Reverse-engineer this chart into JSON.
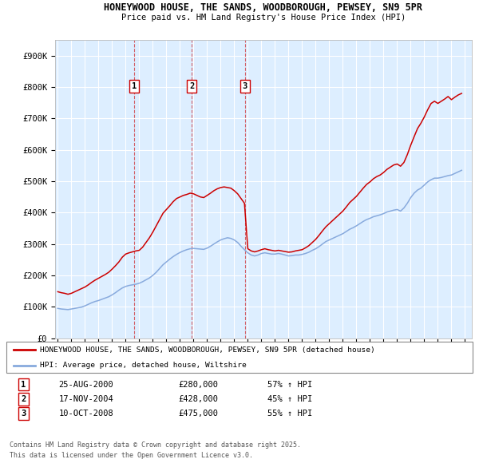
{
  "title_line1": "HONEYWOOD HOUSE, THE SANDS, WOODBOROUGH, PEWSEY, SN9 5PR",
  "title_line2": "Price paid vs. HM Land Registry's House Price Index (HPI)",
  "ylim": [
    0,
    950000
  ],
  "yticks": [
    0,
    100000,
    200000,
    300000,
    400000,
    500000,
    600000,
    700000,
    800000,
    900000
  ],
  "ytick_labels": [
    "£0",
    "£100K",
    "£200K",
    "£300K",
    "£400K",
    "£500K",
    "£600K",
    "£700K",
    "£800K",
    "£900K"
  ],
  "xlim_start": 1994.8,
  "xlim_end": 2025.5,
  "sale_dates": [
    2000.646,
    2004.88,
    2008.774
  ],
  "sale_labels": [
    "1",
    "2",
    "3"
  ],
  "sale_info": [
    {
      "num": "1",
      "date": "25-AUG-2000",
      "price": "£280,000",
      "hpi": "57% ↑ HPI"
    },
    {
      "num": "2",
      "date": "17-NOV-2004",
      "price": "£428,000",
      "hpi": "45% ↑ HPI"
    },
    {
      "num": "3",
      "date": "10-OCT-2008",
      "price": "£475,000",
      "hpi": "55% ↑ HPI"
    }
  ],
  "legend_line1": "HONEYWOOD HOUSE, THE SANDS, WOODBOROUGH, PEWSEY, SN9 5PR (detached house)",
  "legend_line2": "HPI: Average price, detached house, Wiltshire",
  "footer_line1": "Contains HM Land Registry data © Crown copyright and database right 2025.",
  "footer_line2": "This data is licensed under the Open Government Licence v3.0.",
  "red_color": "#cc0000",
  "blue_color": "#88aadd",
  "bg_plot": "#ddeeff",
  "grid_color": "#ffffff",
  "hpi_years": [
    1995.0,
    1995.25,
    1995.5,
    1995.75,
    1996.0,
    1996.25,
    1996.5,
    1996.75,
    1997.0,
    1997.25,
    1997.5,
    1997.75,
    1998.0,
    1998.25,
    1998.5,
    1998.75,
    1999.0,
    1999.25,
    1999.5,
    1999.75,
    2000.0,
    2000.25,
    2000.5,
    2000.75,
    2001.0,
    2001.25,
    2001.5,
    2001.75,
    2002.0,
    2002.25,
    2002.5,
    2002.75,
    2003.0,
    2003.25,
    2003.5,
    2003.75,
    2004.0,
    2004.25,
    2004.5,
    2004.75,
    2005.0,
    2005.25,
    2005.5,
    2005.75,
    2006.0,
    2006.25,
    2006.5,
    2006.75,
    2007.0,
    2007.25,
    2007.5,
    2007.75,
    2008.0,
    2008.25,
    2008.5,
    2008.75,
    2009.0,
    2009.25,
    2009.5,
    2009.75,
    2010.0,
    2010.25,
    2010.5,
    2010.75,
    2011.0,
    2011.25,
    2011.5,
    2011.75,
    2012.0,
    2012.25,
    2012.5,
    2012.75,
    2013.0,
    2013.25,
    2013.5,
    2013.75,
    2014.0,
    2014.25,
    2014.5,
    2014.75,
    2015.0,
    2015.25,
    2015.5,
    2015.75,
    2016.0,
    2016.25,
    2016.5,
    2016.75,
    2017.0,
    2017.25,
    2017.5,
    2017.75,
    2018.0,
    2018.25,
    2018.5,
    2018.75,
    2019.0,
    2019.25,
    2019.5,
    2019.75,
    2020.0,
    2020.25,
    2020.5,
    2020.75,
    2021.0,
    2021.25,
    2021.5,
    2021.75,
    2022.0,
    2022.25,
    2022.5,
    2022.75,
    2023.0,
    2023.25,
    2023.5,
    2023.75,
    2024.0,
    2024.25,
    2024.5,
    2024.75
  ],
  "hpi_values": [
    95000,
    93000,
    92000,
    91000,
    93000,
    95000,
    97000,
    99000,
    103000,
    108000,
    113000,
    117000,
    120000,
    124000,
    128000,
    132000,
    138000,
    145000,
    153000,
    160000,
    165000,
    168000,
    170000,
    172000,
    175000,
    180000,
    186000,
    192000,
    200000,
    210000,
    222000,
    234000,
    243000,
    252000,
    260000,
    267000,
    273000,
    278000,
    282000,
    285000,
    286000,
    285000,
    284000,
    283000,
    287000,
    293000,
    300000,
    307000,
    313000,
    317000,
    320000,
    318000,
    313000,
    305000,
    293000,
    282000,
    272000,
    265000,
    262000,
    265000,
    270000,
    272000,
    270000,
    268000,
    268000,
    270000,
    268000,
    265000,
    262000,
    263000,
    265000,
    265000,
    267000,
    270000,
    274000,
    280000,
    285000,
    292000,
    300000,
    308000,
    313000,
    318000,
    323000,
    328000,
    333000,
    340000,
    347000,
    352000,
    358000,
    365000,
    372000,
    378000,
    382000,
    387000,
    390000,
    393000,
    397000,
    402000,
    405000,
    408000,
    410000,
    405000,
    415000,
    430000,
    448000,
    462000,
    472000,
    478000,
    488000,
    498000,
    505000,
    510000,
    510000,
    512000,
    515000,
    518000,
    520000,
    525000,
    530000,
    535000
  ],
  "red_years": [
    1995.0,
    1995.25,
    1995.5,
    1995.75,
    1996.0,
    1996.25,
    1996.5,
    1996.75,
    1997.0,
    1997.25,
    1997.5,
    1997.75,
    1998.0,
    1998.25,
    1998.5,
    1998.75,
    1999.0,
    1999.25,
    1999.5,
    1999.75,
    2000.0,
    2000.25,
    2000.5,
    2000.75,
    2001.0,
    2001.25,
    2001.5,
    2001.75,
    2002.0,
    2002.25,
    2002.5,
    2002.75,
    2003.0,
    2003.25,
    2003.5,
    2003.75,
    2004.0,
    2004.25,
    2004.5,
    2004.75,
    2005.0,
    2005.25,
    2005.5,
    2005.75,
    2006.0,
    2006.25,
    2006.5,
    2006.75,
    2007.0,
    2007.25,
    2007.5,
    2007.75,
    2008.0,
    2008.25,
    2008.5,
    2008.75,
    2009.0,
    2009.25,
    2009.5,
    2009.75,
    2010.0,
    2010.25,
    2010.5,
    2010.75,
    2011.0,
    2011.25,
    2011.5,
    2011.75,
    2012.0,
    2012.25,
    2012.5,
    2012.75,
    2013.0,
    2013.25,
    2013.5,
    2013.75,
    2014.0,
    2014.25,
    2014.5,
    2014.75,
    2015.0,
    2015.25,
    2015.5,
    2015.75,
    2016.0,
    2016.25,
    2016.5,
    2016.75,
    2017.0,
    2017.25,
    2017.5,
    2017.75,
    2018.0,
    2018.25,
    2018.5,
    2018.75,
    2019.0,
    2019.25,
    2019.5,
    2019.75,
    2020.0,
    2020.25,
    2020.5,
    2020.75,
    2021.0,
    2021.25,
    2021.5,
    2021.75,
    2022.0,
    2022.25,
    2022.5,
    2022.75,
    2023.0,
    2023.25,
    2023.5,
    2023.75,
    2024.0,
    2024.25,
    2024.5,
    2024.75
  ],
  "red_values": [
    148000,
    145000,
    143000,
    140000,
    143000,
    148000,
    153000,
    158000,
    163000,
    170000,
    178000,
    185000,
    191000,
    197000,
    203000,
    210000,
    220000,
    231000,
    243000,
    258000,
    268000,
    272000,
    275000,
    278000,
    280000,
    290000,
    305000,
    320000,
    338000,
    358000,
    378000,
    398000,
    410000,
    422000,
    435000,
    445000,
    450000,
    455000,
    458000,
    462000,
    460000,
    455000,
    450000,
    448000,
    455000,
    462000,
    470000,
    476000,
    480000,
    482000,
    480000,
    478000,
    470000,
    460000,
    445000,
    430000,
    285000,
    278000,
    275000,
    278000,
    282000,
    285000,
    282000,
    280000,
    278000,
    280000,
    278000,
    276000,
    274000,
    275000,
    278000,
    280000,
    282000,
    288000,
    295000,
    305000,
    315000,
    328000,
    342000,
    355000,
    365000,
    375000,
    385000,
    395000,
    405000,
    418000,
    432000,
    442000,
    452000,
    465000,
    478000,
    490000,
    498000,
    508000,
    515000,
    520000,
    528000,
    538000,
    545000,
    552000,
    555000,
    548000,
    560000,
    585000,
    615000,
    642000,
    668000,
    685000,
    705000,
    728000,
    748000,
    755000,
    748000,
    755000,
    762000,
    770000,
    760000,
    768000,
    775000,
    780000
  ]
}
